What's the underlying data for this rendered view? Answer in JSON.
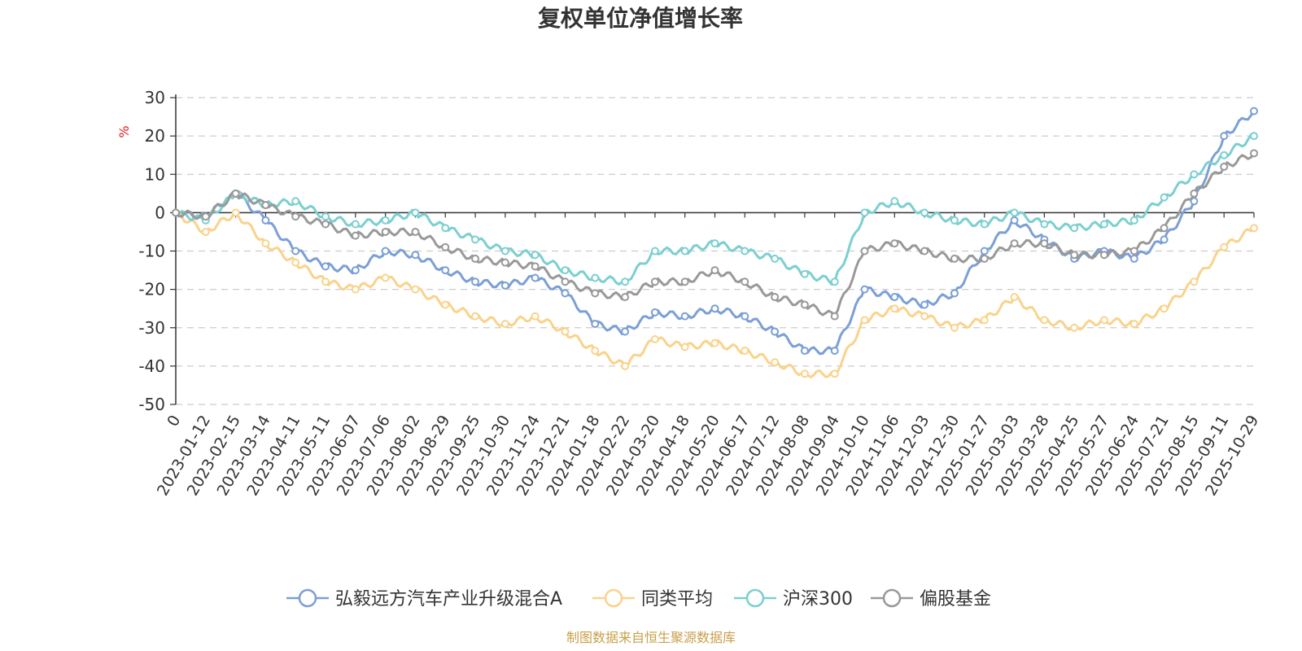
{
  "chart_data": {
    "type": "line",
    "title": "复权单位净值增长率",
    "unit": "%",
    "ylim": [
      -50,
      30
    ],
    "yticks": [
      30,
      20,
      10,
      0,
      -10,
      -20,
      -30,
      -40,
      -50
    ],
    "grid": true,
    "legend_position": "bottom",
    "x": [
      "0",
      "2023-01-12",
      "2023-02-15",
      "2023-03-14",
      "2023-04-11",
      "2023-05-11",
      "2023-06-07",
      "2023-07-06",
      "2023-08-02",
      "2023-08-29",
      "2023-09-25",
      "2023-10-30",
      "2023-11-24",
      "2023-12-21",
      "2024-01-18",
      "2024-02-22",
      "2024-03-20",
      "2024-04-18",
      "2024-05-20",
      "2024-06-17",
      "2024-07-12",
      "2024-08-08",
      "2024-09-04",
      "2024-10-10",
      "2024-11-06",
      "2024-12-03",
      "2024-12-30",
      "2025-01-27",
      "2025-03-03",
      "2025-03-28",
      "2025-04-25",
      "2025-05-27",
      "2025-06-24",
      "2025-07-21",
      "2025-08-15",
      "2025-09-11",
      "2025-10-29"
    ],
    "series": [
      {
        "name": "弘毅远方汽车产业升级混合A",
        "color": "#7b9fd6",
        "values": [
          0,
          -1,
          5,
          -2,
          -10,
          -14,
          -15,
          -10,
          -11,
          -15,
          -18,
          -19,
          -17,
          -21,
          -29,
          -31,
          -26,
          -27,
          -25,
          -27,
          -31,
          -36,
          -36,
          -20,
          -22,
          -24,
          -21,
          -10,
          -2,
          -7,
          -12,
          -10,
          -12,
          -7,
          3,
          20,
          26.5
        ]
      },
      {
        "name": "同类平均",
        "color": "#f9d38c",
        "values": [
          0,
          -5,
          0,
          -8,
          -13,
          -18,
          -20,
          -17,
          -20,
          -24,
          -27,
          -29,
          -27,
          -31,
          -36,
          -40,
          -33,
          -35,
          -34,
          -36,
          -39,
          -42,
          -42,
          -28,
          -25,
          -27,
          -30,
          -28,
          -22,
          -28,
          -30,
          -28,
          -29,
          -25,
          -18,
          -9,
          -4
        ]
      },
      {
        "name": "沪深300",
        "color": "#7ccfd0",
        "values": [
          0,
          -2,
          5,
          2,
          3,
          -1,
          -3,
          -2,
          0,
          -4,
          -7,
          -10,
          -11,
          -15,
          -17,
          -18,
          -10,
          -10,
          -8,
          -10,
          -12,
          -16,
          -18,
          0,
          3,
          0,
          -2,
          -3,
          0,
          -3,
          -4,
          -3,
          -2,
          4,
          10,
          15,
          20
        ]
      },
      {
        "name": "偏股基金",
        "color": "#999999",
        "values": [
          0,
          -1,
          5,
          2,
          -1,
          -3,
          -6,
          -5,
          -5,
          -9,
          -12,
          -13,
          -14,
          -18,
          -21,
          -22,
          -18,
          -18,
          -15,
          -18,
          -22,
          -24,
          -27,
          -10,
          -8,
          -10,
          -12,
          -12,
          -8,
          -8,
          -11,
          -11,
          -10,
          -4,
          5,
          12,
          15.5
        ]
      }
    ],
    "source": "制图数据来自恒生聚源数据库"
  }
}
